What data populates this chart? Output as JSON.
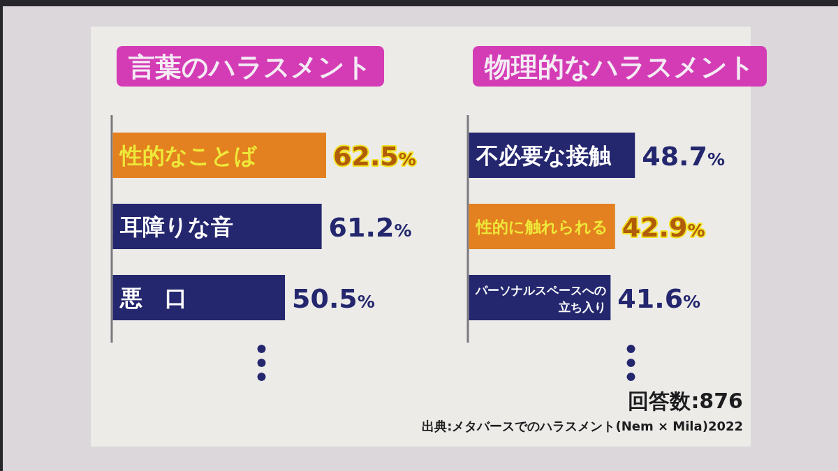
{
  "chart_data": [
    {
      "type": "bar",
      "orientation": "horizontal",
      "title": "言葉のハラスメント",
      "categories": [
        "性的なことば",
        "耳障りな音",
        "悪　口"
      ],
      "values": [
        62.5,
        61.2,
        50.5
      ],
      "colors": [
        "#e3801f",
        "#24276e",
        "#24276e"
      ],
      "value_labels": [
        "62.5%",
        "61.2%",
        "50.5%"
      ]
    },
    {
      "type": "bar",
      "orientation": "horizontal",
      "title": "物理的なハラスメント",
      "categories": [
        "不必要な接触",
        "性的に触れられる",
        "パーソナルスペースへの立ち入り"
      ],
      "values": [
        48.7,
        42.9,
        41.6
      ],
      "colors": [
        "#24276e",
        "#e3801f",
        "#24276e"
      ],
      "value_labels": [
        "48.7%",
        "42.9%",
        "41.6%"
      ],
      "annotations": [
        "回答数:876",
        "出典:メタバースでのハラスメント(Nem × Mila)2022"
      ]
    }
  ]
}
